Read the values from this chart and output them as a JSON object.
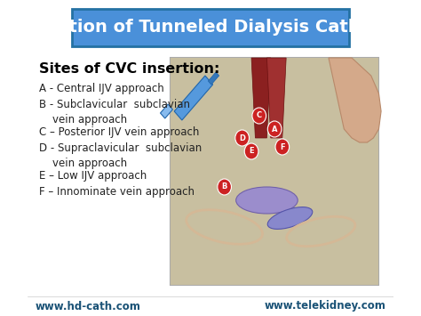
{
  "title": "Insertion of Tunneled Dialysis Catheter",
  "title_bg": "#4a90d9",
  "title_text_color": "white",
  "bg_color": "white",
  "heading": "Sites of CVC insertion:",
  "heading_bold": true,
  "items": [
    "A - Central IJV approach",
    "B - Subclavicular  subclavian\n    vein approach",
    "C – Posterior IJV vein approach",
    "D - Supraclavicular  subclavian\n    vein approach",
    "E – Low IJV approach",
    "F – Innominate vein approach"
  ],
  "footer_left": "www.hd-cath.com",
  "footer_right": "www.telekidney.com",
  "footer_color": "#1a5276",
  "item_fontsize": 8.5,
  "heading_fontsize": 11.5,
  "title_fontsize": 14
}
